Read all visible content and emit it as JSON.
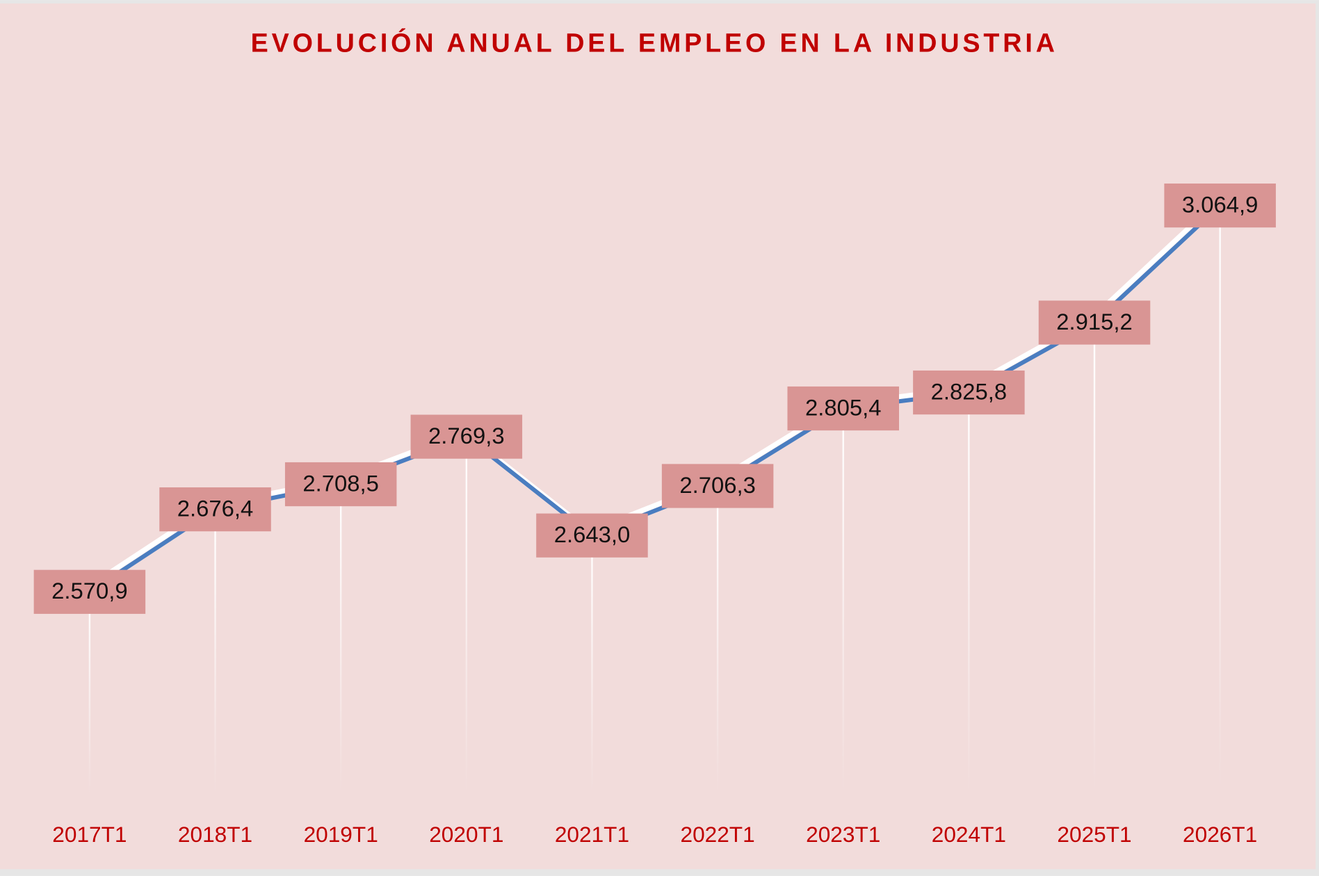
{
  "chart_data": {
    "type": "line",
    "title": "EVOLUCIÓN ANUAL DEL EMPLEO EN LA INDUSTRIA",
    "categories": [
      "2017T1",
      "2018T1",
      "2019T1",
      "2020T1",
      "2021T1",
      "2022T1",
      "2023T1",
      "2024T1",
      "2025T1",
      "2026T1"
    ],
    "values": [
      2570.9,
      2676.4,
      2708.5,
      2769.3,
      2643.0,
      2706.3,
      2805.4,
      2825.8,
      2915.2,
      3064.9
    ],
    "value_labels": [
      "2.570,9",
      "2.676,4",
      "2.708,5",
      "2.769,3",
      "2.643,0",
      "2.706,3",
      "2.805,4",
      "2.825,8",
      "2.915,2",
      "3.064,9"
    ],
    "color": "#4a7dc0"
  }
}
